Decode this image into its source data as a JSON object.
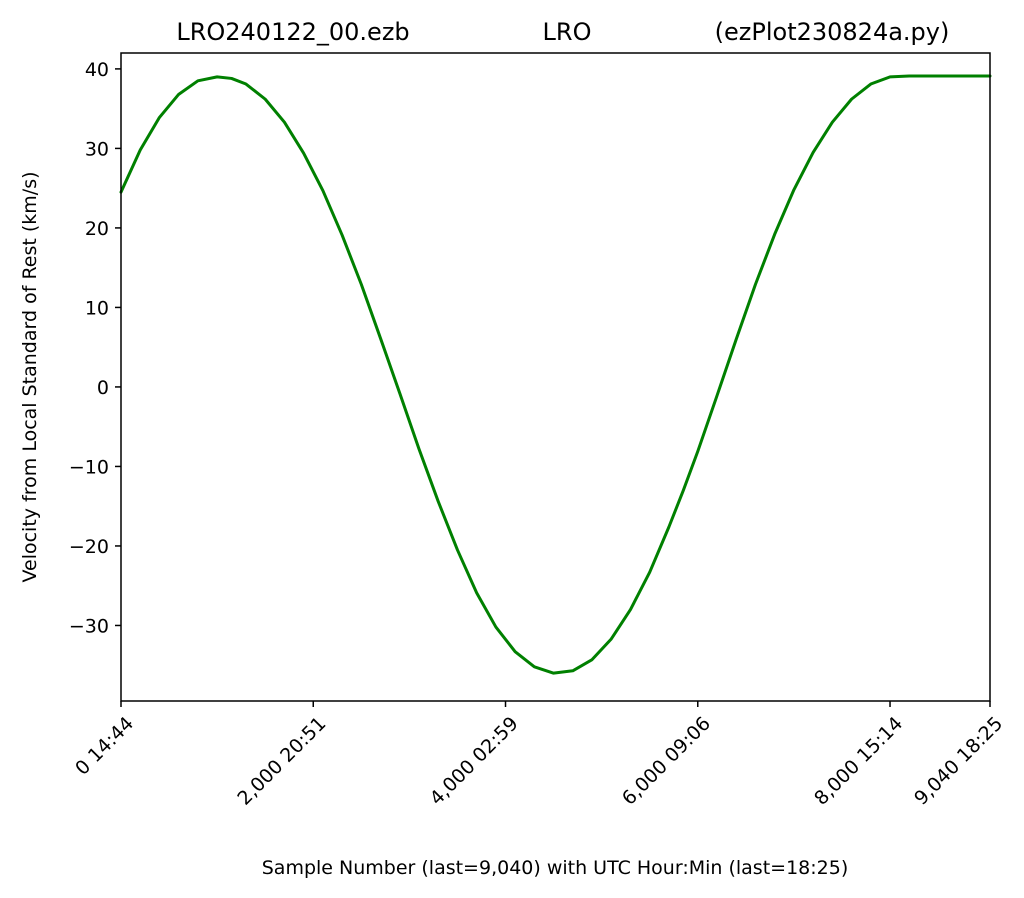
{
  "chart_data": {
    "type": "line",
    "title_left": "LRO240122_00.ezb",
    "title_center": "LRO",
    "title_right": "(ezPlot230824a.py)",
    "xlabel": "Sample Number (last=9,040) with UTC Hour:Min (last=18:25)",
    "ylabel": "Velocity from Local Standard of Rest (km/s)",
    "xlim": [
      0,
      9040
    ],
    "ylim": [
      -39.5,
      42
    ],
    "x_ticks": [
      {
        "value": 0,
        "label": "0  14:44"
      },
      {
        "value": 2000,
        "label": "2,000  20:51"
      },
      {
        "value": 4000,
        "label": "4,000  02:59"
      },
      {
        "value": 6000,
        "label": "6,000  09:06"
      },
      {
        "value": 8000,
        "label": "8,000  15:14"
      },
      {
        "value": 9040,
        "label": "9,040  18:25"
      }
    ],
    "y_ticks": [
      {
        "value": 40,
        "label": "40"
      },
      {
        "value": 30,
        "label": "30"
      },
      {
        "value": 20,
        "label": "20"
      },
      {
        "value": 10,
        "label": "10"
      },
      {
        "value": 0,
        "label": "0"
      },
      {
        "value": -10,
        "label": "−10"
      },
      {
        "value": -20,
        "label": "−20"
      },
      {
        "value": -30,
        "label": "−30"
      }
    ],
    "grid": false,
    "series": [
      {
        "color": "#008000",
        "x": [
          0,
          200,
          400,
          600,
          800,
          1000,
          1150,
          1300,
          1500,
          1700,
          1900,
          2100,
          2300,
          2500,
          2700,
          2900,
          3100,
          3300,
          3500,
          3700,
          3900,
          4100,
          4300,
          4500,
          4700,
          4900,
          5100,
          5300,
          5500,
          5700,
          5850,
          6000,
          6200,
          6400,
          6600,
          6800,
          7000,
          7200,
          7400,
          7600,
          7800,
          8000,
          8200,
          8400,
          8600,
          8800,
          8900,
          9000,
          9040
        ],
        "y": [
          24.5,
          29.8,
          33.9,
          36.8,
          38.5,
          39.0,
          38.8,
          38.1,
          36.2,
          33.3,
          29.4,
          24.7,
          19.1,
          12.9,
          6.1,
          -0.8,
          -7.8,
          -14.4,
          -20.5,
          -25.9,
          -30.2,
          -33.3,
          -35.2,
          -36.0,
          -35.7,
          -34.3,
          -31.7,
          -28.0,
          -23.3,
          -17.6,
          -13.0,
          -8.1,
          -1.1,
          6.0,
          12.9,
          19.2,
          24.8,
          29.5,
          33.3,
          36.2,
          38.1,
          39.0,
          39.1,
          39.1,
          39.1,
          39.1,
          39.1,
          39.1,
          39.1
        ]
      }
    ]
  }
}
